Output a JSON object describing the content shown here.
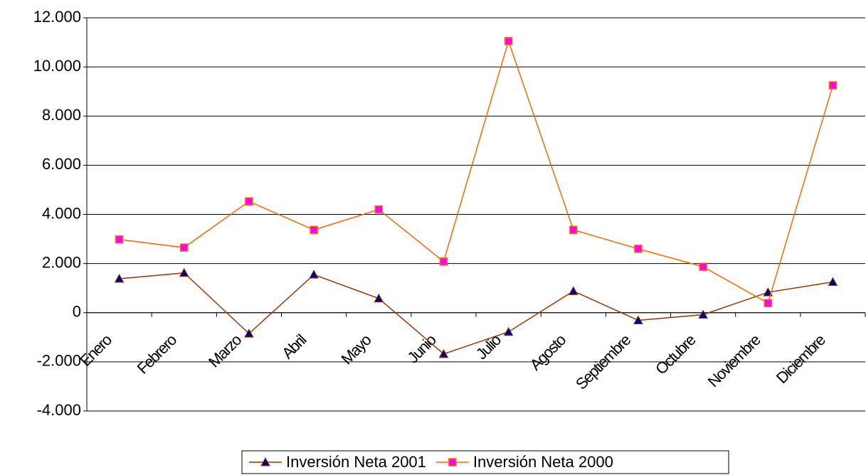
{
  "chart_data": {
    "type": "line",
    "categories": [
      "Enero",
      "Febrero",
      "Marzo",
      "Abril",
      "Mayo",
      "Junio",
      "Julio",
      "Agosto",
      "Septiembre",
      "Octubre",
      "Noviembre",
      "Diciembre"
    ],
    "series": [
      {
        "name": "Inversión Neta 2001",
        "color": "#993300",
        "marker": "triangle",
        "marker_color": "#000080",
        "values": [
          1380,
          1620,
          -850,
          1550,
          580,
          -1680,
          -780,
          880,
          -310,
          -80,
          830,
          1250
        ]
      },
      {
        "name": "Inversión Neta 2000",
        "color": "#ff6600",
        "marker": "square",
        "marker_color": "#ff00ff",
        "values": [
          2980,
          2650,
          4530,
          3370,
          4200,
          2080,
          11050,
          3370,
          2600,
          1870,
          390,
          9250
        ]
      }
    ],
    "ylim": [
      -4000,
      12000
    ],
    "yticks": [
      {
        "value": -4000,
        "label": "-4.000"
      },
      {
        "value": -2000,
        "label": "-2.000"
      },
      0,
      {
        "value": 2000,
        "label": "2.000"
      },
      {
        "value": 4000,
        "label": "4.000"
      },
      {
        "value": 6000,
        "label": "6.000"
      },
      {
        "value": 8000,
        "label": "8.000"
      },
      {
        "value": 10000,
        "label": "10.000"
      },
      {
        "value": 12000,
        "label": "12.000"
      }
    ],
    "grid": true,
    "legend": "bottom"
  }
}
